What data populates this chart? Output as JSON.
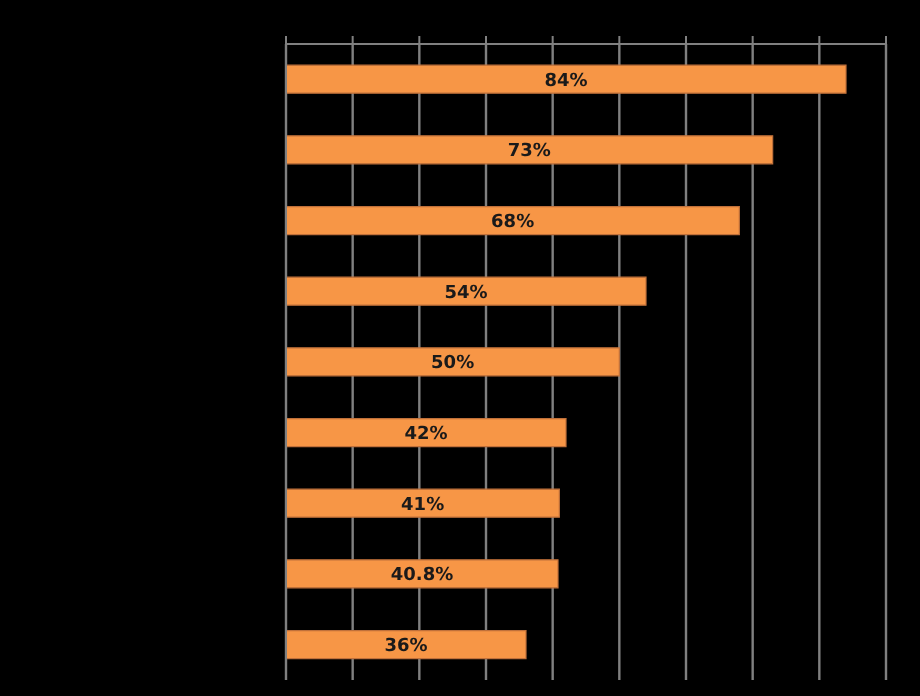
{
  "chart_data": {
    "type": "bar",
    "orientation": "horizontal",
    "categories": [
      null,
      null,
      null,
      null,
      null,
      null,
      null,
      null,
      null
    ],
    "values": [
      84,
      73,
      68,
      54,
      50,
      42,
      41,
      40.8,
      36
    ],
    "color": "#f79646",
    "value_labels": [
      "84%",
      "73%",
      "68%",
      "54%",
      "50%",
      "42%",
      "41%",
      "40.8%",
      "36%"
    ],
    "xlim": [
      0,
      90
    ],
    "xticks": [
      {
        "value": 0,
        "label": null
      },
      {
        "value": 10,
        "label": null
      },
      {
        "value": 20,
        "label": null
      },
      {
        "value": 30,
        "label": null
      },
      {
        "value": 40,
        "label": null
      },
      {
        "value": 50,
        "label": null
      },
      {
        "value": 60,
        "label": null
      },
      {
        "value": 70,
        "label": null
      },
      {
        "value": 80,
        "label": null
      },
      {
        "value": 90,
        "label": null
      }
    ],
    "grid": "x"
  }
}
